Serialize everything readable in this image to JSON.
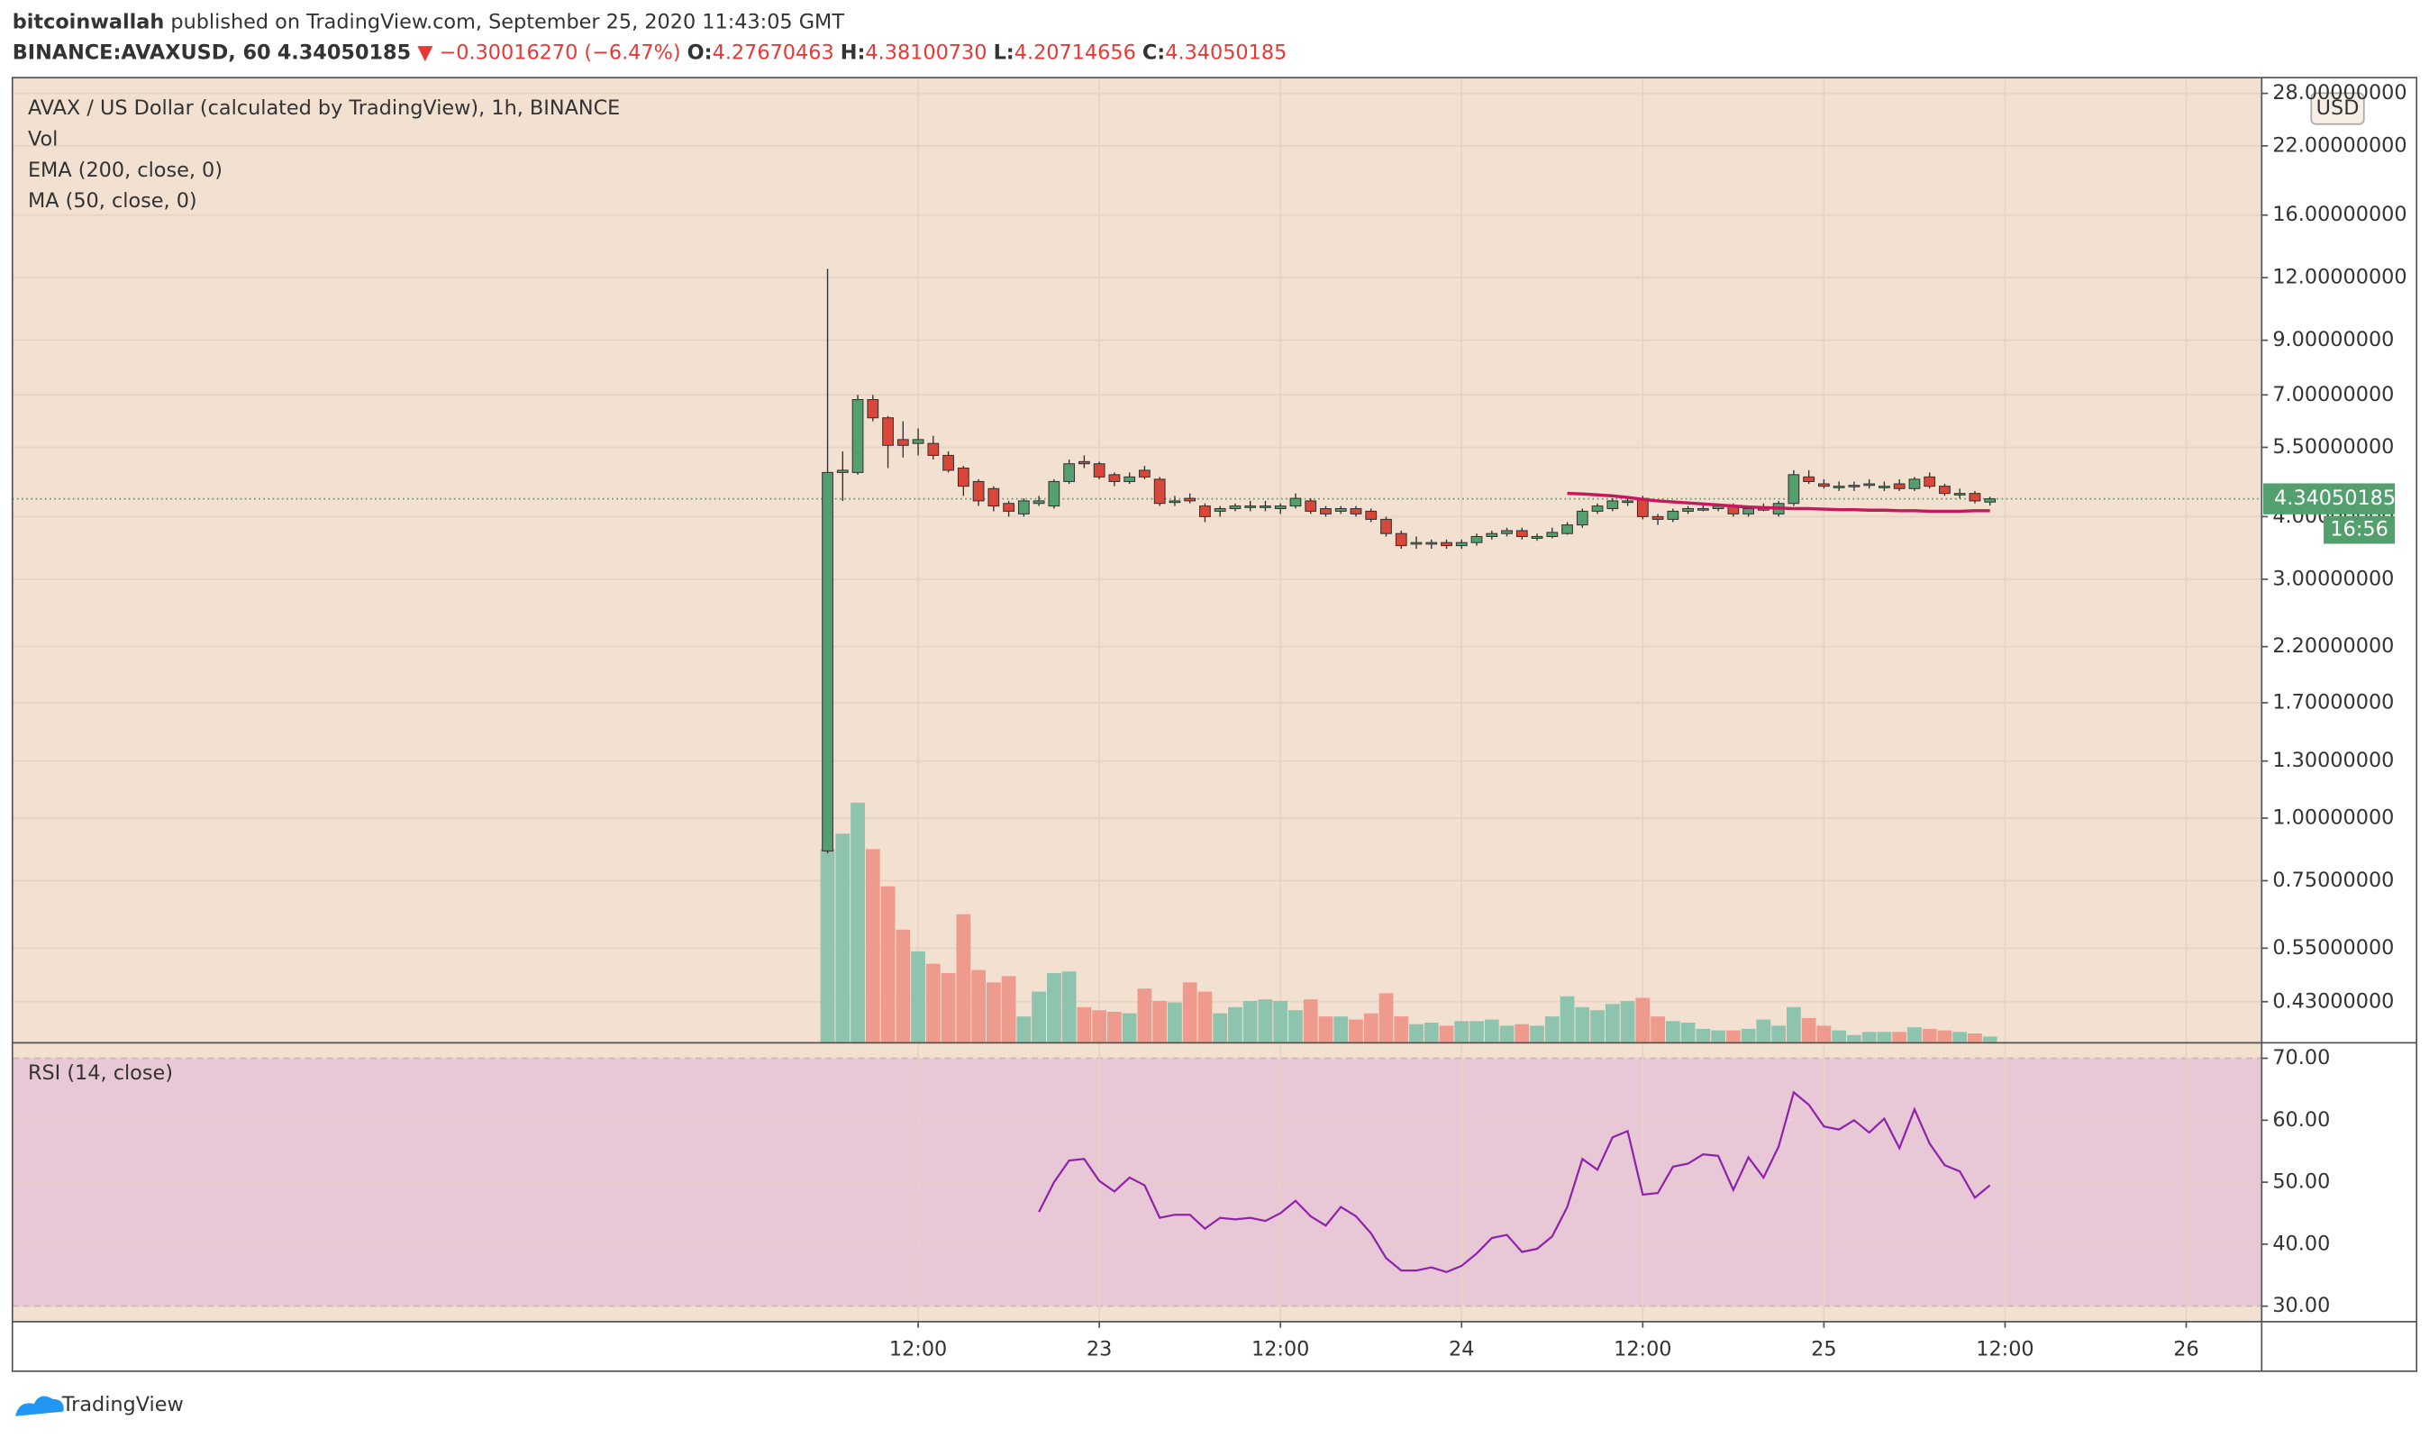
{
  "header": {
    "publisher": "bitcoinwallah",
    "published": "published on TradingView.com, September 25, 2020 11:43:05 GMT",
    "symbol": "BINANCE:AVAXUSD, 60",
    "price": "4.34050185",
    "arrow": "▼",
    "change": "−0.30016270 (−6.47%)",
    "ohlc": [
      {
        "label": "O:",
        "value": "4.27670463"
      },
      {
        "label": "H:",
        "value": "4.38100730"
      },
      {
        "label": "L:",
        "value": "4.20714656"
      },
      {
        "label": "C:",
        "value": "4.34050185"
      }
    ]
  },
  "chart_data": {
    "type": "candlestick",
    "title": "AVAX / US Dollar (calculated by TradingView), 1h, BINANCE",
    "legend": [
      "Vol",
      "EMA (200, close, 0)",
      "MA (50, close, 0)"
    ],
    "currency": "USD",
    "log_scale": true,
    "grid": true,
    "up_color": "#53a06e",
    "down_color": "#d8473a",
    "vol_up_color": "#8ec3ae",
    "vol_down_color": "#ee9a8c",
    "ma_color": "#c8175d",
    "x": [
      6,
      7,
      8,
      9,
      10,
      11,
      12,
      13,
      14,
      15,
      16,
      17,
      18,
      19,
      20,
      21,
      22,
      23,
      24,
      25,
      26,
      27,
      28,
      29,
      30,
      31,
      32,
      33,
      34,
      35,
      36,
      37,
      38,
      39,
      40,
      41,
      42,
      43,
      44,
      45,
      46,
      47,
      48,
      49,
      50,
      51,
      52,
      53,
      54,
      55,
      56,
      57,
      58,
      59,
      60,
      61,
      62,
      63,
      64,
      65,
      66,
      67,
      68,
      69,
      70,
      71,
      72,
      73,
      74,
      75,
      76,
      77,
      78,
      79,
      80,
      81,
      82,
      83
    ],
    "xlim": [
      -48,
      101
    ],
    "xticks": [
      {
        "value": 12,
        "label": "12:00"
      },
      {
        "value": 24,
        "label": "23"
      },
      {
        "value": 36,
        "label": "12:00"
      },
      {
        "value": 48,
        "label": "24"
      },
      {
        "value": 60,
        "label": "12:00"
      },
      {
        "value": 72,
        "label": "25"
      },
      {
        "value": 84,
        "label": "12:00"
      },
      {
        "value": 96,
        "label": "26"
      }
    ],
    "ylim": [
      0.356,
      30.1
    ],
    "yticks": [
      {
        "value": 28,
        "label": "28.00000000"
      },
      {
        "value": 22,
        "label": "22.00000000"
      },
      {
        "value": 16,
        "label": "16.00000000"
      },
      {
        "value": 12,
        "label": "12.00000000"
      },
      {
        "value": 9,
        "label": "9.00000000"
      },
      {
        "value": 7,
        "label": "7.00000000"
      },
      {
        "value": 5.5,
        "label": "5.50000000"
      },
      {
        "value": 4,
        "label": "4.00000000"
      },
      {
        "value": 3,
        "label": "3.00000000"
      },
      {
        "value": 2.2,
        "label": "2.20000000"
      },
      {
        "value": 1.7,
        "label": "1.70000000"
      },
      {
        "value": 1.3,
        "label": "1.30000000"
      },
      {
        "value": 1,
        "label": "1.00000000"
      },
      {
        "value": 0.75,
        "label": "0.75000000"
      },
      {
        "value": 0.55,
        "label": "0.55000000"
      },
      {
        "value": 0.43,
        "label": "0.43000000"
      }
    ],
    "open": [
      0.86,
      4.9,
      4.9,
      6.85,
      6.3,
      5.7,
      5.6,
      5.6,
      5.3,
      5.0,
      4.7,
      4.55,
      4.25,
      4.05,
      4.25,
      4.2,
      4.7,
      5.15,
      5.1,
      4.85,
      4.7,
      4.95,
      4.75,
      4.3,
      4.35,
      4.2,
      4.1,
      4.15,
      4.2,
      4.2,
      4.15,
      4.2,
      4.3,
      4.15,
      4.1,
      4.15,
      4.1,
      3.95,
      3.7,
      3.55,
      3.55,
      3.55,
      3.5,
      3.55,
      3.65,
      3.7,
      3.75,
      3.62,
      3.65,
      3.7,
      3.85,
      4.1,
      4.15,
      4.3,
      4.35,
      4.0,
      3.95,
      4.1,
      4.15,
      4.15,
      4.2,
      4.05,
      4.15,
      4.05,
      4.25,
      4.8,
      4.65,
      4.6,
      4.6,
      4.62,
      4.6,
      4.65,
      4.55,
      4.8,
      4.6,
      4.45,
      4.45,
      4.27670463
    ],
    "high": [
      12.5,
      5.4,
      7.0,
      7.0,
      6.35,
      6.2,
      6.0,
      5.8,
      5.4,
      5.05,
      4.75,
      4.6,
      4.3,
      4.35,
      4.4,
      4.75,
      5.2,
      5.3,
      5.15,
      4.9,
      4.9,
      5.05,
      4.8,
      4.4,
      4.45,
      4.25,
      4.2,
      4.25,
      4.3,
      4.3,
      4.25,
      4.45,
      4.35,
      4.2,
      4.2,
      4.2,
      4.15,
      4.0,
      3.75,
      3.65,
      3.6,
      3.6,
      3.6,
      3.7,
      3.75,
      3.8,
      3.8,
      3.7,
      3.8,
      3.9,
      4.15,
      4.25,
      4.35,
      4.4,
      4.4,
      4.05,
      4.15,
      4.2,
      4.25,
      4.25,
      4.25,
      4.2,
      4.25,
      4.3,
      4.95,
      4.95,
      4.75,
      4.7,
      4.7,
      4.75,
      4.7,
      4.75,
      4.8,
      4.9,
      4.65,
      4.55,
      4.5,
      4.381
    ],
    "low": [
      0.85,
      4.3,
      4.85,
      6.2,
      5.0,
      5.25,
      5.3,
      5.2,
      4.9,
      4.4,
      4.2,
      4.1,
      4.0,
      4.0,
      4.2,
      4.15,
      4.65,
      5.0,
      4.75,
      4.6,
      4.65,
      4.75,
      4.2,
      4.2,
      4.25,
      3.9,
      4.0,
      4.1,
      4.1,
      4.1,
      4.05,
      4.15,
      4.05,
      4.0,
      4.05,
      4.0,
      3.9,
      3.65,
      3.45,
      3.45,
      3.45,
      3.45,
      3.45,
      3.5,
      3.6,
      3.65,
      3.6,
      3.58,
      3.62,
      3.68,
      3.8,
      4.05,
      4.1,
      4.2,
      3.95,
      3.85,
      3.9,
      4.05,
      4.1,
      4.1,
      4.0,
      4.0,
      4.1,
      4.0,
      4.2,
      4.65,
      4.55,
      4.5,
      4.5,
      4.55,
      4.5,
      4.5,
      4.5,
      4.55,
      4.4,
      4.35,
      4.25,
      4.20714656
    ],
    "close": [
      4.9,
      4.95,
      6.85,
      6.3,
      5.55,
      5.55,
      5.7,
      5.3,
      4.95,
      4.6,
      4.3,
      4.2,
      4.1,
      4.3,
      4.3,
      4.7,
      5.1,
      5.1,
      4.8,
      4.7,
      4.8,
      4.8,
      4.25,
      4.3,
      4.3,
      4.0,
      4.15,
      4.2,
      4.2,
      4.2,
      4.2,
      4.35,
      4.1,
      4.05,
      4.15,
      4.05,
      3.95,
      3.7,
      3.5,
      3.55,
      3.55,
      3.5,
      3.55,
      3.65,
      3.7,
      3.75,
      3.65,
      3.65,
      3.72,
      3.85,
      4.1,
      4.2,
      4.3,
      4.3,
      4.0,
      3.95,
      4.1,
      4.15,
      4.15,
      4.2,
      4.05,
      4.15,
      4.15,
      4.25,
      4.85,
      4.7,
      4.6,
      4.6,
      4.62,
      4.65,
      4.6,
      4.55,
      4.75,
      4.6,
      4.45,
      4.45,
      4.3,
      4.34050185
    ],
    "volume": [
      125,
      135,
      155,
      125,
      101,
      73,
      59,
      51,
      45,
      83,
      47,
      39,
      43,
      17,
      33,
      45,
      46,
      23,
      21,
      20,
      19,
      35,
      27,
      26,
      39,
      33,
      19,
      23,
      27,
      28,
      27,
      21,
      28,
      17,
      17,
      15,
      19,
      32,
      17,
      12,
      13,
      11,
      14,
      14,
      15,
      11,
      12,
      11,
      17,
      30,
      23,
      21,
      25,
      27,
      29,
      17,
      14,
      13,
      9,
      8,
      8,
      9,
      15,
      11,
      23,
      16,
      11,
      8,
      5,
      7,
      7,
      7,
      10,
      9,
      8,
      7,
      6,
      4
    ],
    "vlim": [
      0,
      160
    ],
    "ma": [
      null,
      null,
      null,
      null,
      null,
      null,
      null,
      null,
      null,
      null,
      null,
      null,
      null,
      null,
      null,
      null,
      null,
      null,
      null,
      null,
      null,
      null,
      null,
      null,
      null,
      null,
      null,
      null,
      null,
      null,
      null,
      null,
      null,
      null,
      null,
      null,
      null,
      null,
      null,
      null,
      null,
      null,
      null,
      null,
      null,
      null,
      null,
      null,
      null,
      4.45,
      4.44,
      4.42,
      4.4,
      4.37,
      4.33,
      4.3,
      4.28,
      4.26,
      4.24,
      4.22,
      4.2,
      4.18,
      4.17,
      4.16,
      4.15,
      4.15,
      4.14,
      4.13,
      4.13,
      4.12,
      4.12,
      4.11,
      4.11,
      4.1,
      4.1,
      4.1,
      4.11,
      4.11
    ],
    "last_price": 4.34050185,
    "countdown": "16:56",
    "rsi": {
      "title": "RSI (14, close)",
      "color": "#8e24aa",
      "ylim": [
        27.5,
        72.5
      ],
      "yticks": [
        {
          "value": 70,
          "label": "70.00"
        },
        {
          "value": 60,
          "label": "60.00"
        },
        {
          "value": 50,
          "label": "50.00"
        },
        {
          "value": 40,
          "label": "40.00"
        },
        {
          "value": 30,
          "label": "30.00"
        }
      ],
      "band": [
        30,
        70
      ],
      "values": [
        null,
        null,
        null,
        null,
        null,
        null,
        null,
        null,
        null,
        null,
        null,
        null,
        null,
        null,
        45.2,
        50,
        53.5,
        53.75,
        50.2,
        48.5,
        50.75,
        49.5,
        44.25,
        44.75,
        44.75,
        42.5,
        44.25,
        44,
        44.25,
        43.75,
        45,
        47,
        44.5,
        43,
        46,
        44.5,
        41.75,
        37.75,
        35.75,
        35.75,
        36.25,
        35.5,
        36.5,
        38.5,
        41,
        41.5,
        38.75,
        39.25,
        41.25,
        46,
        53.75,
        52,
        57.25,
        58.25,
        48,
        48.25,
        52.5,
        53,
        54.5,
        54.25,
        48.75,
        54,
        50.75,
        55.75,
        64.5,
        62.5,
        59,
        58.5,
        60,
        58,
        60.25,
        55.5,
        61.75,
        56.25,
        52.75,
        51.75,
        47.5,
        49.5
      ]
    }
  },
  "footer": {
    "brand": "TradingView"
  }
}
